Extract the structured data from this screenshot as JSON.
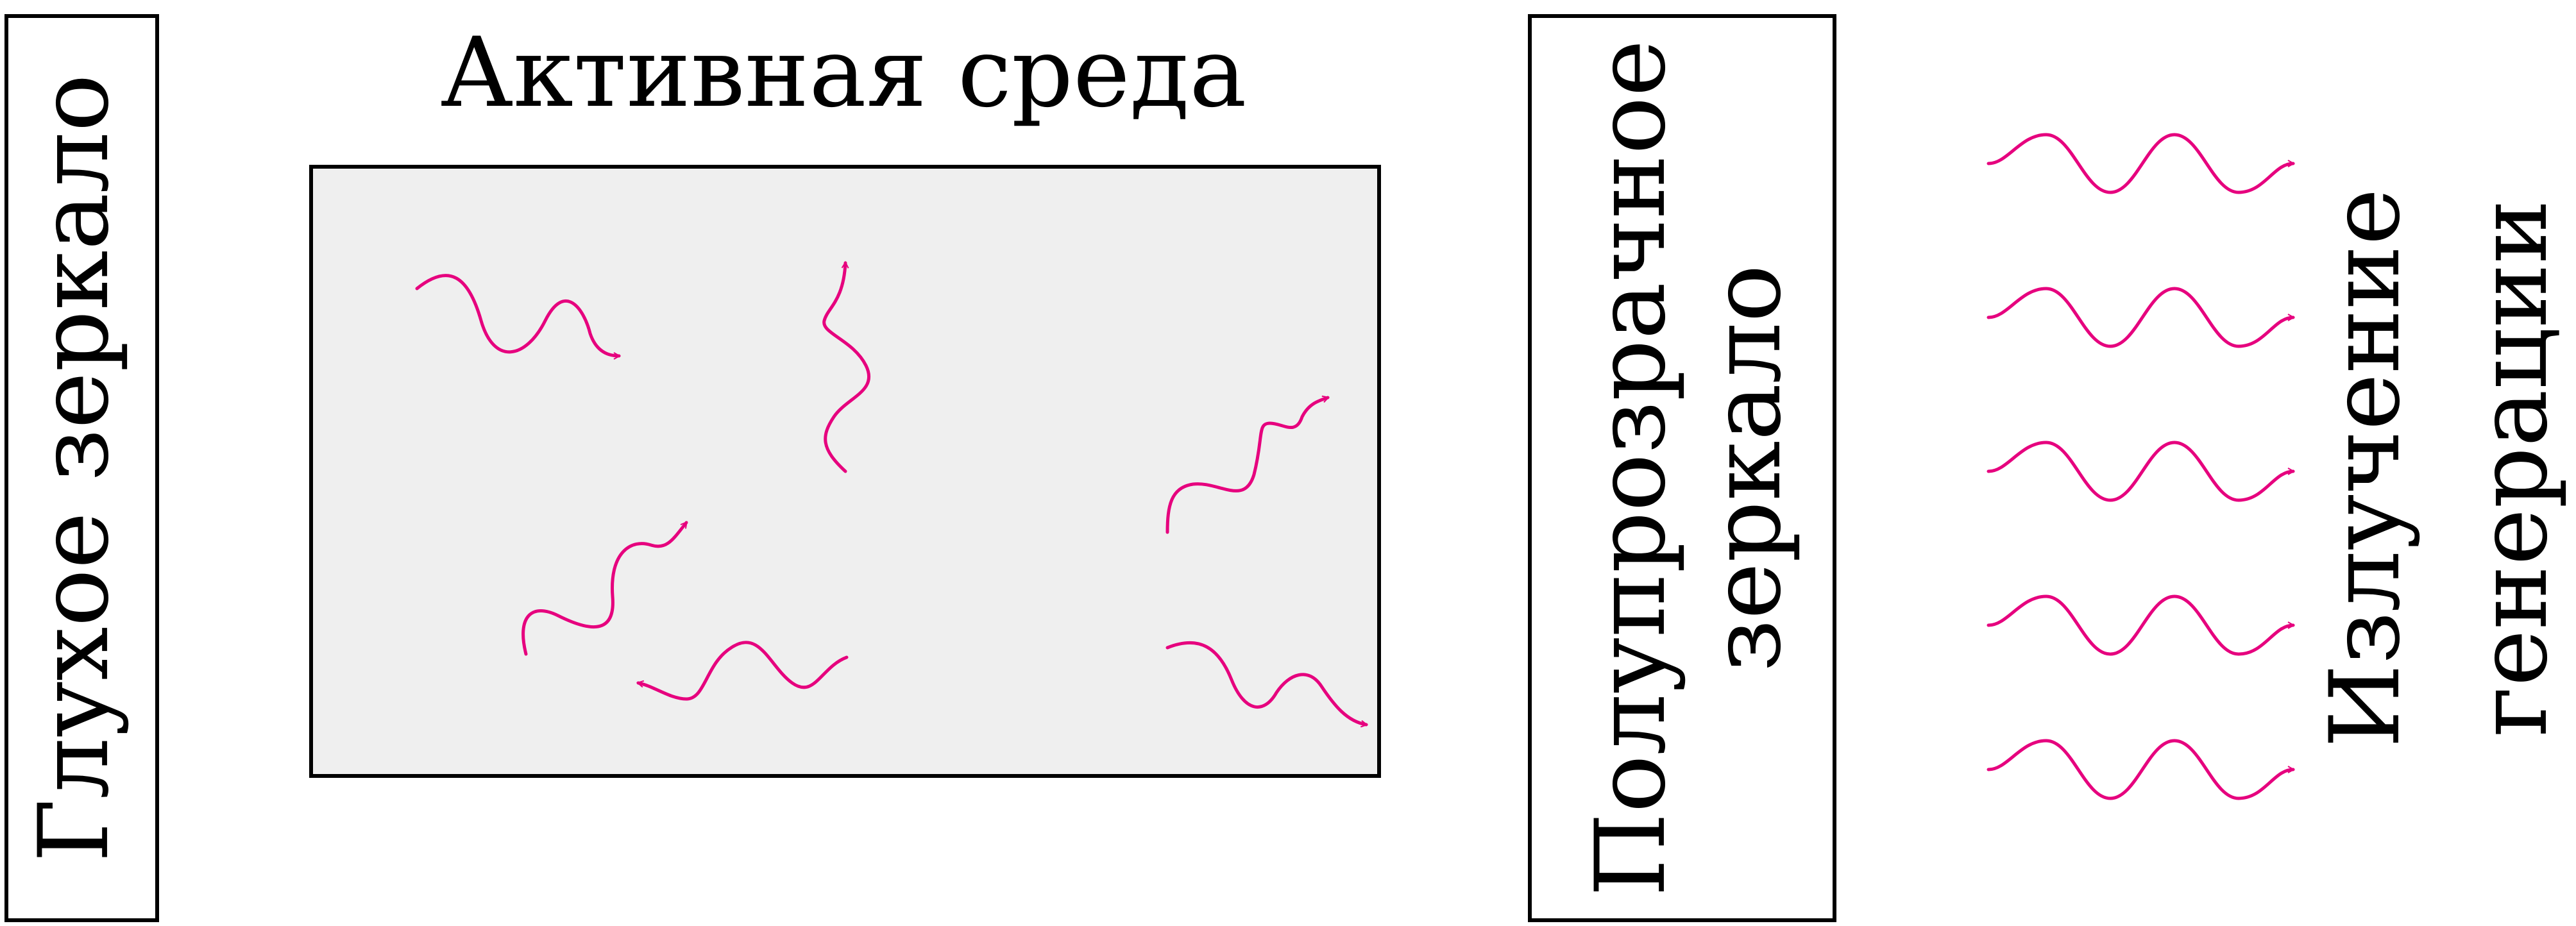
{
  "labels": {
    "rear_mirror": "Глухое зеркало",
    "active_medium": "Активная среда",
    "output_mirror_line1": "Полупрозрачное",
    "output_mirror_line2": "зеркало",
    "output_beam_line1": "Излучение",
    "output_beam_line2": "генерации"
  },
  "colors": {
    "photon": "#e6007e",
    "medium_fill": "#efefef",
    "outline": "#000000"
  },
  "icons": {
    "photon": "wavy-arrow-icon"
  }
}
